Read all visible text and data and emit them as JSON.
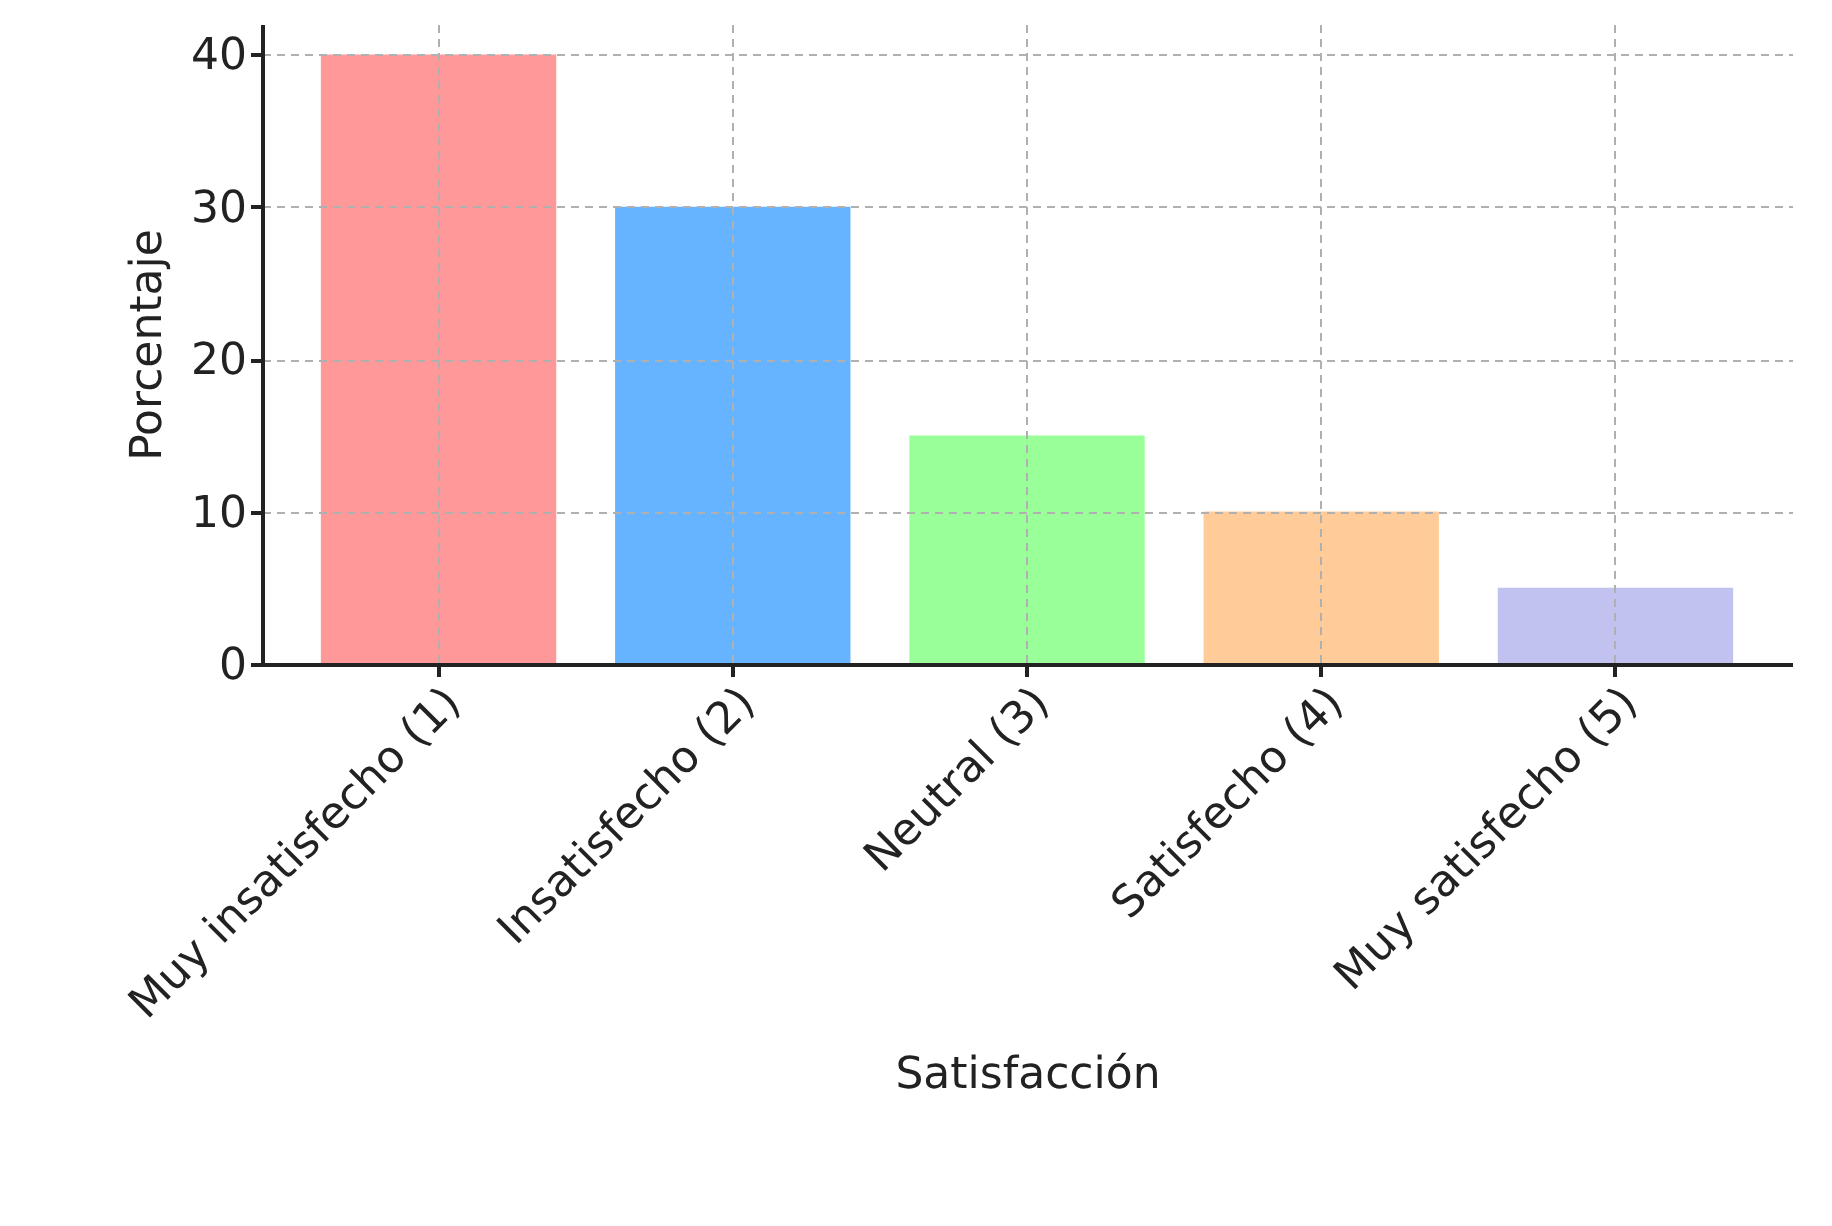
{
  "chart_data": {
    "type": "bar",
    "xlabel": "Satisfacción",
    "ylabel": "Porcentaje",
    "categories": [
      "Muy insatisfecho (1)",
      "Insatisfecho (2)",
      "Neutral (3)",
      "Satisfecho (4)",
      "Muy satisfecho (5)"
    ],
    "values": [
      40,
      30,
      15,
      10,
      5
    ],
    "colors": [
      "#ff9999",
      "#66b3ff",
      "#99ff99",
      "#ffcc99",
      "#c2c2f0"
    ],
    "ylim": [
      0,
      42
    ],
    "yticks": [
      0,
      10,
      20,
      30,
      40
    ],
    "grid": true
  }
}
